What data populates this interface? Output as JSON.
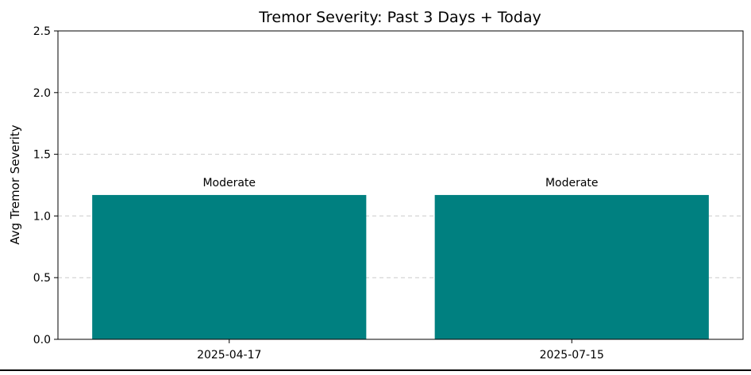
{
  "chart_data": {
    "type": "bar",
    "title": "Tremor Severity: Past 3 Days + Today",
    "xlabel": "",
    "ylabel": "Avg Tremor Severity",
    "categories": [
      "2025-04-17",
      "2025-07-15"
    ],
    "values": [
      1.17,
      1.17
    ],
    "bar_labels": [
      "Moderate",
      "Moderate"
    ],
    "ylim": [
      0,
      2.5
    ],
    "yticks": [
      "0.0",
      "0.5",
      "1.0",
      "1.5",
      "2.0",
      "2.5"
    ],
    "grid": "y-dashed",
    "bar_color": "#008080"
  }
}
